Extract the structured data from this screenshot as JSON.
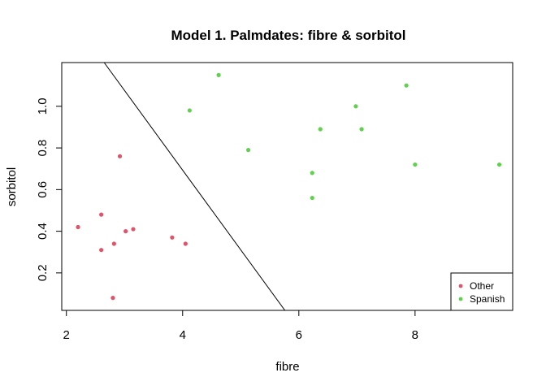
{
  "chart_data": {
    "type": "scatter",
    "title": "Model 1. Palmdates: fibre & sorbitol",
    "xlabel": "fibre",
    "ylabel": "sorbitol",
    "xlim": [
      1.92,
      9.68
    ],
    "ylim": [
      0.02,
      1.21
    ],
    "x_ticks": [
      2,
      4,
      6,
      8
    ],
    "y_ticks": [
      0.2,
      0.4,
      0.6,
      0.8,
      1.0
    ],
    "x_tick_labels": [
      "2",
      "4",
      "6",
      "8"
    ],
    "y_tick_labels": [
      "0.2",
      "0.4",
      "0.6",
      "0.8",
      "1.0"
    ],
    "grid": false,
    "legend_position": "bottom-right",
    "series": [
      {
        "name": "Other",
        "color": "#DF536B",
        "points": [
          {
            "x": 2.2,
            "y": 0.42
          },
          {
            "x": 2.6,
            "y": 0.48
          },
          {
            "x": 2.6,
            "y": 0.31
          },
          {
            "x": 2.8,
            "y": 0.08
          },
          {
            "x": 2.82,
            "y": 0.34
          },
          {
            "x": 2.92,
            "y": 0.76
          },
          {
            "x": 3.02,
            "y": 0.4
          },
          {
            "x": 3.15,
            "y": 0.41
          },
          {
            "x": 3.82,
            "y": 0.37
          },
          {
            "x": 4.05,
            "y": 0.34
          }
        ]
      },
      {
        "name": "Spanish",
        "color": "#61D04F",
        "points": [
          {
            "x": 4.12,
            "y": 0.98
          },
          {
            "x": 4.62,
            "y": 1.15
          },
          {
            "x": 5.13,
            "y": 0.79
          },
          {
            "x": 6.23,
            "y": 0.68
          },
          {
            "x": 6.23,
            "y": 0.56
          },
          {
            "x": 6.37,
            "y": 0.89
          },
          {
            "x": 6.98,
            "y": 1.0
          },
          {
            "x": 7.08,
            "y": 0.89
          },
          {
            "x": 7.85,
            "y": 1.1
          },
          {
            "x": 8.0,
            "y": 0.72
          },
          {
            "x": 9.45,
            "y": 0.72
          }
        ]
      }
    ],
    "lines": [
      {
        "x1": 2.65,
        "y1": 1.21,
        "x2": 5.76,
        "y2": 0.02,
        "color": "#000000"
      }
    ]
  }
}
